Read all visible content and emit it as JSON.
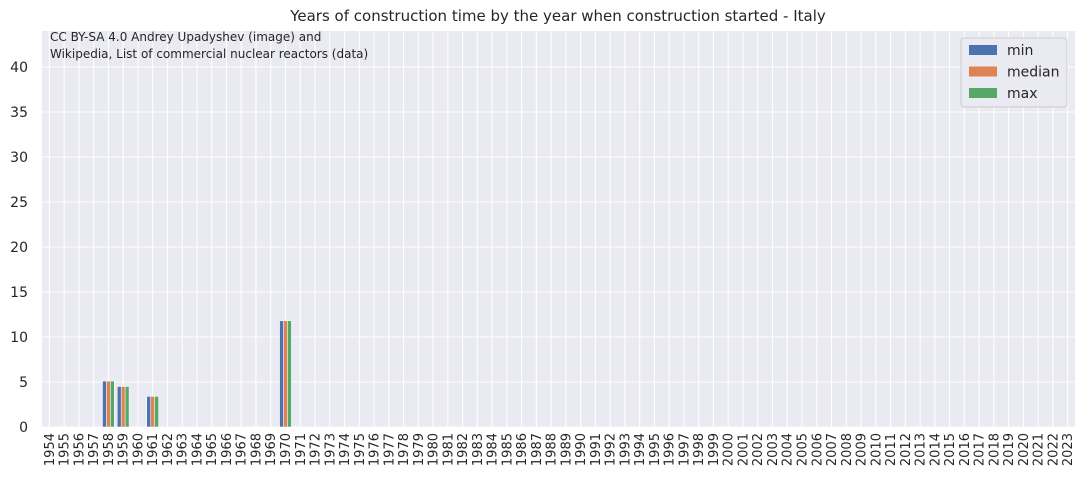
{
  "chart_data": {
    "type": "bar",
    "title": "Years of construction time by the year when construction started - Italy",
    "credit_lines": [
      "CC BY-SA 4.0 Andrey Upadyshev (image) and",
      "Wikipedia, List of commercial nuclear reactors (data)"
    ],
    "xlabel": "",
    "ylabel": "",
    "ylim": [
      0,
      44
    ],
    "yticks": [
      0,
      5,
      10,
      15,
      20,
      25,
      30,
      35,
      40
    ],
    "grid": true,
    "legend_position": "top-right",
    "categories": [
      "1954",
      "1955",
      "1956",
      "1957",
      "1958",
      "1959",
      "1960",
      "1961",
      "1962",
      "1963",
      "1964",
      "1965",
      "1966",
      "1967",
      "1968",
      "1969",
      "1970",
      "1971",
      "1972",
      "1973",
      "1974",
      "1975",
      "1976",
      "1977",
      "1978",
      "1979",
      "1980",
      "1981",
      "1982",
      "1983",
      "1984",
      "1985",
      "1986",
      "1987",
      "1988",
      "1989",
      "1990",
      "1991",
      "1992",
      "1993",
      "1994",
      "1995",
      "1996",
      "1997",
      "1998",
      "1999",
      "2000",
      "2001",
      "2002",
      "2003",
      "2004",
      "2005",
      "2006",
      "2007",
      "2008",
      "2009",
      "2010",
      "2011",
      "2012",
      "2013",
      "2014",
      "2015",
      "2016",
      "2017",
      "2018",
      "2019",
      "2020",
      "2021",
      "2022",
      "2023"
    ],
    "highlighted_categories": [
      "1957",
      "1979",
      "1986",
      "2011"
    ],
    "highlight_color": "#e8000b",
    "series": [
      {
        "name": "min",
        "color": "#4c72b0",
        "values": {
          "1958": 5.1,
          "1959": 4.5,
          "1961": 3.4,
          "1970": 11.8
        }
      },
      {
        "name": "median",
        "color": "#dd8452",
        "values": {
          "1958": 5.1,
          "1959": 4.5,
          "1961": 3.4,
          "1970": 11.8
        }
      },
      {
        "name": "max",
        "color": "#55a868",
        "values": {
          "1958": 5.1,
          "1959": 4.5,
          "1961": 3.4,
          "1970": 11.8
        }
      }
    ],
    "colors": {
      "plot_background": "#eaeaf2",
      "grid": "#ffffff"
    }
  }
}
